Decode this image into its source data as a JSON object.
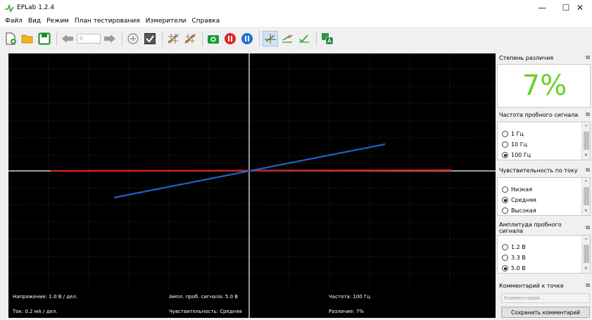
{
  "window": {
    "title": "EPLab 1.2.4",
    "minimize": "—",
    "maximize": "☐",
    "close": "✕"
  },
  "menu": [
    "Файл",
    "Вид",
    "Режим",
    "План тестирования",
    "Измерители",
    "Справка"
  ],
  "toolbar": {
    "position_value": "0"
  },
  "plot": {
    "labels": {
      "voltage": "Напряжение: 1.0 В / дел.",
      "amplitude": "Ампл. проб. сигнала: 5.0 В",
      "frequency": "Частота: 100 Гц",
      "current": "Ток: 0.2 мА / дел.",
      "sensitivity": "Чувствительность: Средняя",
      "difference": "Различие: 7%"
    },
    "colors": {
      "reference": "#e02020",
      "measured": "#1e63c8",
      "axis": "#ffffff",
      "grid": "#5a5a5a"
    }
  },
  "panel": {
    "difference": {
      "title": "Степень различия",
      "value": "7%",
      "color": "#6fcf2b"
    },
    "frequency": {
      "title": "Частота пробного сигнала",
      "options": [
        "1 Гц",
        "10 Гц",
        "100 Гц"
      ],
      "selected": 2
    },
    "current_sensitivity": {
      "title": "Чувствительность по току",
      "options": [
        "Низкая",
        "Средняя",
        "Высокая"
      ],
      "selected": 1
    },
    "amplitude": {
      "title": "Амплитуда пробного сигнала",
      "options": [
        "1.2 В",
        "3.3 В",
        "5.0 В"
      ],
      "selected": 2
    },
    "comment": {
      "title": "Комментарий к точке",
      "placeholder": "Комментарий...",
      "save_label": "Сохранить комментарий"
    }
  }
}
